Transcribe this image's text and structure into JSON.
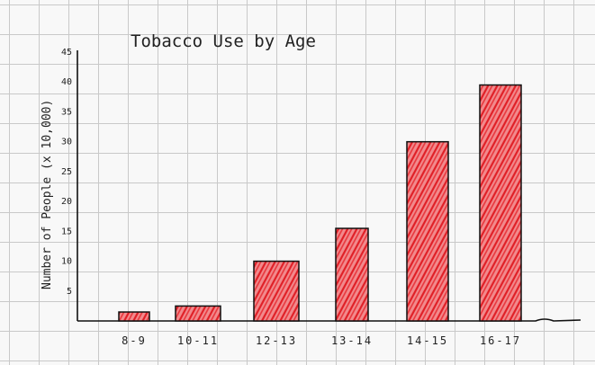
{
  "chart_data": {
    "type": "bar",
    "title": "Tobacco Use by Age",
    "xlabel": "",
    "ylabel": "Number of People (x 10,000)",
    "categories": [
      "8-9",
      "10-11",
      "12-13",
      "13-14",
      "14-15",
      "16-17"
    ],
    "values": [
      1.5,
      2.5,
      10,
      15.5,
      30,
      39.5
    ],
    "ylim": [
      0,
      45
    ],
    "yticks": [
      "5",
      "10",
      "15",
      "20",
      "25",
      "30",
      "35",
      "40",
      "45"
    ],
    "bar_color": "#e8343a",
    "grid": true,
    "legend": "none"
  }
}
